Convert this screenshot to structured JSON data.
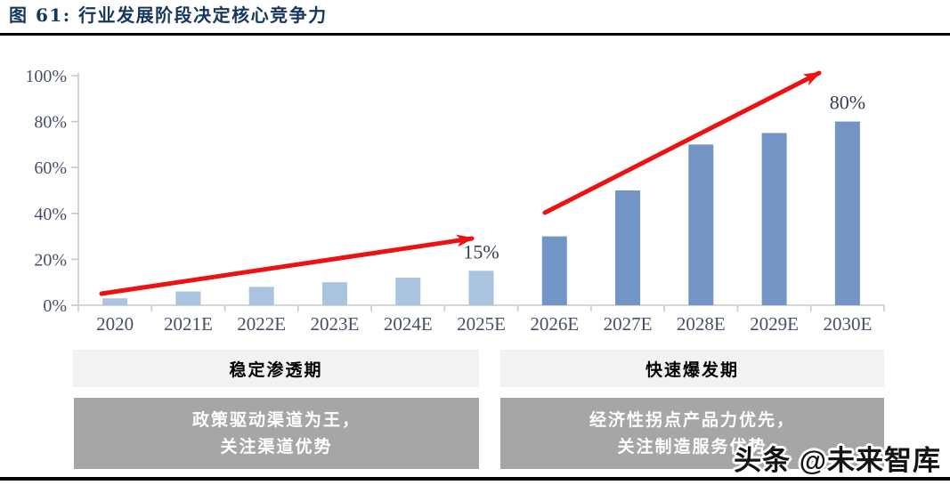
{
  "header": {
    "title": "图 61:  行业发展阶段决定核心竞争力"
  },
  "chart_data": {
    "type": "bar",
    "title": "",
    "xlabel": "",
    "ylabel": "",
    "categories": [
      "2020",
      "2021E",
      "2022E",
      "2023E",
      "2024E",
      "2025E",
      "2026E",
      "2027E",
      "2028E",
      "2029E",
      "2030E"
    ],
    "values": [
      3,
      6,
      8,
      10,
      12,
      15,
      30,
      50,
      70,
      75,
      80
    ],
    "unit": "%",
    "ylim": [
      0,
      100
    ],
    "ytick_step": 20,
    "ytick_labels": [
      "0%",
      "20%",
      "40%",
      "60%",
      "80%",
      "100%"
    ],
    "grid": false,
    "legend": "none",
    "phase_split_index": 6,
    "data_labels": [
      {
        "category": "2025E",
        "text": "15%"
      },
      {
        "category": "2030E",
        "text": "80%"
      }
    ],
    "trend_arrows": [
      {
        "from_category": "2020",
        "to_category": "2025E",
        "phase": "稳定渗透期"
      },
      {
        "from_category": "2026E",
        "to_category": "2030E",
        "phase": "快速爆发期"
      }
    ]
  },
  "sections": [
    {
      "header": "稳定渗透期",
      "body_lines": [
        "政策驱动渠道为王，",
        "关注渠道优势"
      ]
    },
    {
      "header": "快速爆发期",
      "body_lines": [
        "经济性拐点产品力优先，",
        "关注制造服务优势"
      ]
    }
  ],
  "watermark": {
    "text": "头条 @未来智库"
  },
  "colors": {
    "title": "#17365d",
    "axis_label": "#46506a",
    "data_label": "#333f50",
    "bar_light": "#a9c3e1",
    "bar_dark": "#7295c5",
    "arrow_red": "#ee1111",
    "axis_line": "#c9c9c9",
    "section_header_bg": "#f2f2f2",
    "section_body_bg": "#a6a6a6"
  }
}
